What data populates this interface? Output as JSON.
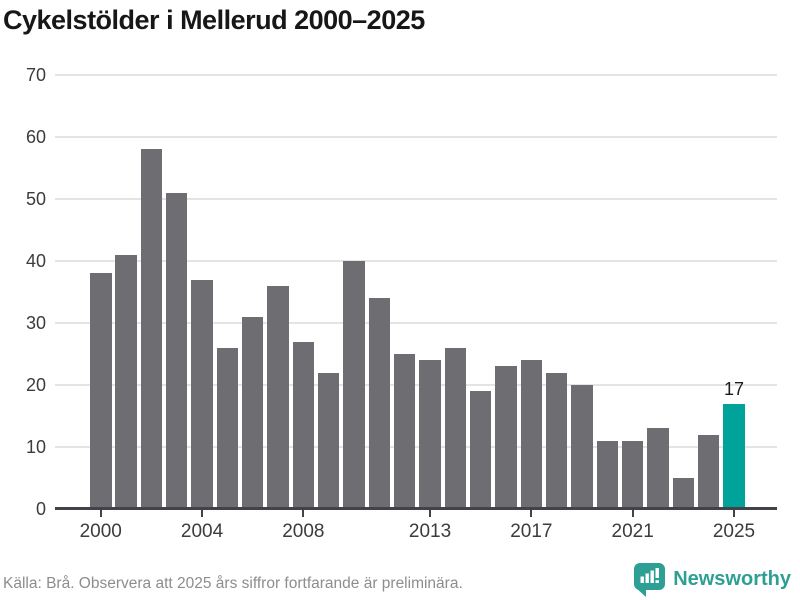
{
  "title": "Cykelstölder i Mellerud 2000–2025",
  "footer": {
    "source_note": "Källa: Brå. Observera att 2025 års siffror fortfarande är preliminära.",
    "brand_name": "Newsworthy",
    "brand_icon": "bar-chart-speech-bubble-icon"
  },
  "colors": {
    "background": "#ffffff",
    "bar": "#6d6d72",
    "bar_highlight": "#00a39a",
    "brand_teal": "#2e9f95",
    "grid": "#e4e4e4",
    "axis": "#42434a",
    "title_text": "#171717",
    "tick_text": "#3c3c3c",
    "source_text": "#8d8d8d"
  },
  "chart_data": {
    "type": "bar",
    "title": "Cykelstölder i Mellerud 2000–2025",
    "xlabel": "",
    "ylabel": "",
    "categories": [
      "2000",
      "2001",
      "2002",
      "2003",
      "2004",
      "2005",
      "2006",
      "2007",
      "2008",
      "2009",
      "2010",
      "2011",
      "2012",
      "2013",
      "2014",
      "2015",
      "2016",
      "2017",
      "2018",
      "2019",
      "2020",
      "2021",
      "2022",
      "2023",
      "2024",
      "2025"
    ],
    "values": [
      38,
      41,
      58,
      51,
      37,
      26,
      31,
      36,
      27,
      22,
      40,
      34,
      25,
      24,
      26,
      19,
      23,
      24,
      22,
      20,
      11,
      11,
      13,
      5,
      12,
      17
    ],
    "ylim": [
      0,
      70
    ],
    "yticks": [
      0,
      10,
      20,
      30,
      40,
      50,
      60,
      70
    ],
    "xticks": [
      "2000",
      "2004",
      "2008",
      "2013",
      "2017",
      "2021",
      "2025"
    ],
    "grid": true,
    "legend": false,
    "highlight": {
      "category": "2025",
      "value": 17,
      "label": "17"
    }
  }
}
